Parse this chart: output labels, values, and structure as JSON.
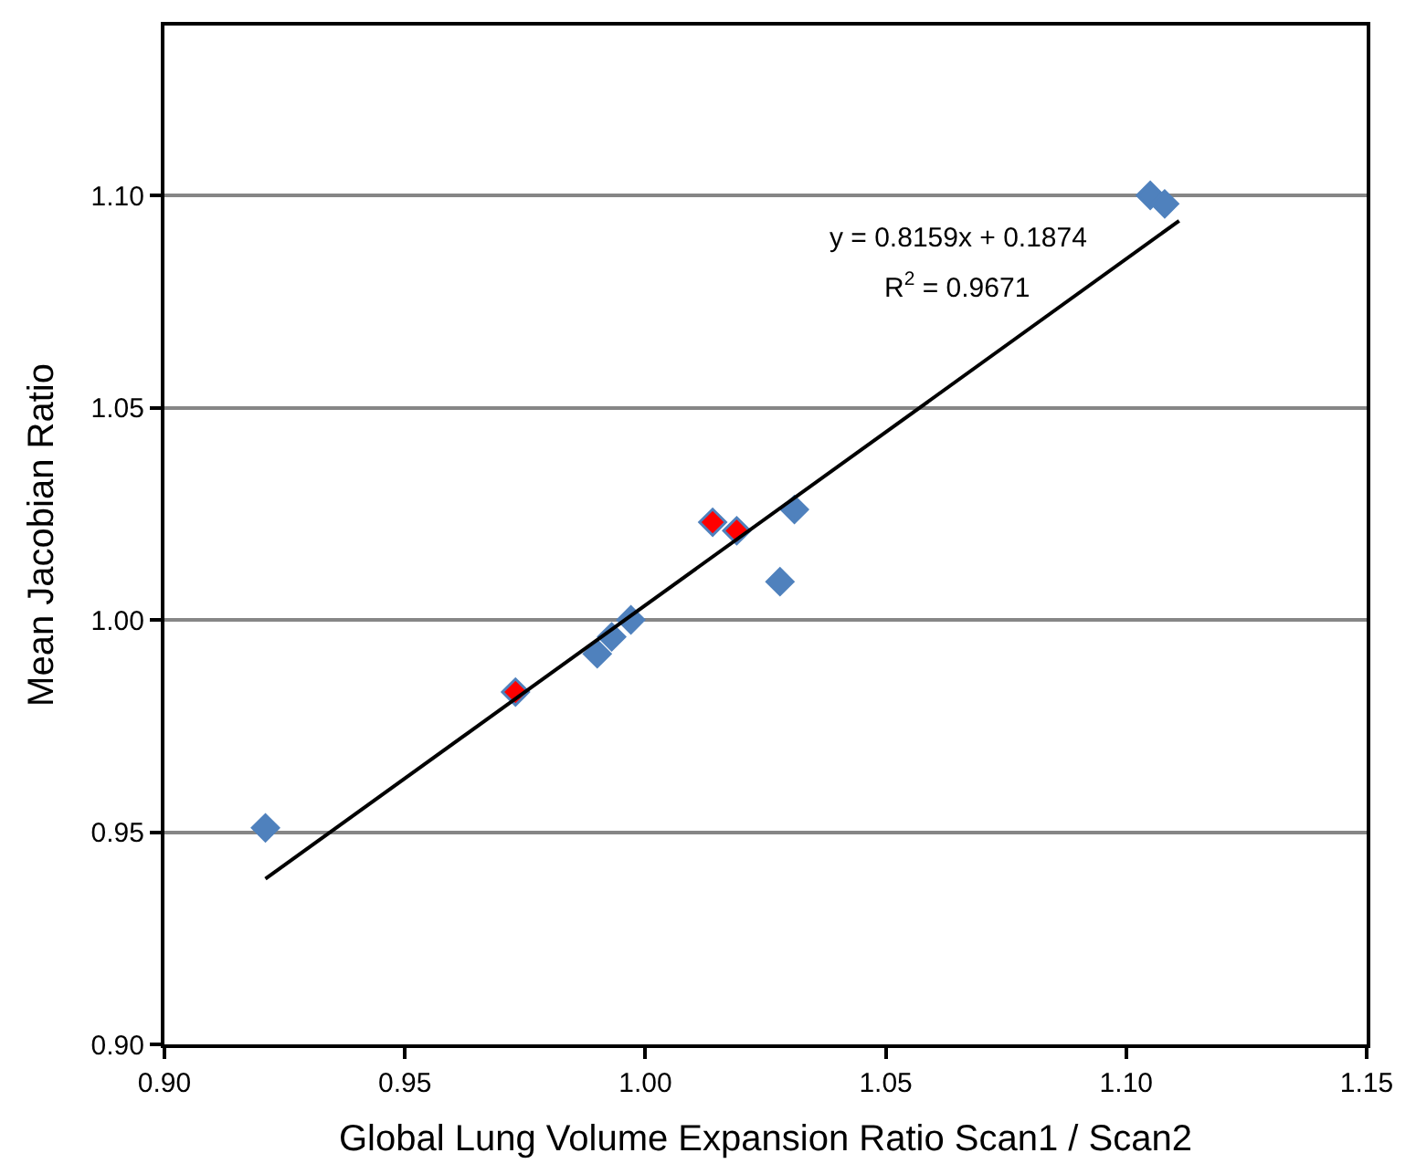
{
  "chart_data": {
    "type": "scatter",
    "xlabel": "Global Lung Volume Expansion Ratio Scan1 / Scan2",
    "ylabel": "Mean Jacobian Ratio",
    "series": [
      {
        "color": "#4f81bd",
        "x": [
          0.921,
          0.973,
          0.99,
          0.993,
          0.997,
          1.014,
          1.019,
          1.028,
          1.031,
          1.105,
          1.108
        ],
        "values": [
          0.951,
          0.983,
          0.992,
          0.996,
          1.0,
          1.023,
          1.021,
          1.009,
          1.026,
          1.1,
          1.098
        ],
        "colors": [
          "#4f81bd",
          "#ff0000",
          "#4f81bd",
          "#4f81bd",
          "#4f81bd",
          "#ff0000",
          "#ff0000",
          "#4f81bd",
          "#4f81bd",
          "#4f81bd",
          "#4f81bd"
        ]
      },
      {
        "type": "line",
        "marker": "none",
        "color": "#000000",
        "x": [
          0.921,
          1.111
        ],
        "values": [
          0.939,
          1.094
        ]
      }
    ],
    "annotations": [
      "y = 0.8159x + 0.1874",
      "R$^{2}$ = 0.9671"
    ],
    "xlim": [
      0.9,
      1.15
    ],
    "xticks": [
      {
        "value": 0.9,
        "label": "0.90"
      },
      {
        "value": 0.95,
        "label": "0.95"
      },
      {
        "value": 1.0,
        "label": "1.00"
      },
      {
        "value": 1.05,
        "label": "1.05"
      },
      {
        "value": 1.1,
        "label": "1.10"
      },
      {
        "value": 1.15,
        "label": "1.15"
      }
    ],
    "ylim": [
      0.9,
      1.14
    ],
    "yticks": [
      {
        "value": 0.9,
        "label": "0.90"
      },
      {
        "value": 0.95,
        "label": "0.95"
      },
      {
        "value": 1.0,
        "label": "1.00"
      },
      {
        "value": 1.05,
        "label": "1.05"
      },
      {
        "value": 1.1,
        "label": "1.10"
      }
    ],
    "grid": "y",
    "marker": "diamond",
    "line_style": "solid"
  }
}
